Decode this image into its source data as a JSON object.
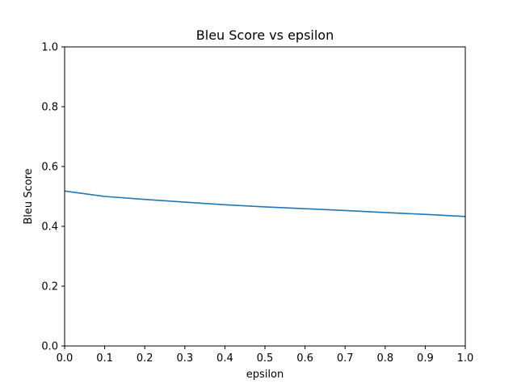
{
  "chart_data": {
    "type": "line",
    "title": "Bleu Score vs epsilon",
    "xlabel": "epsilon",
    "ylabel": "Bleu Score",
    "xlim": [
      0.0,
      1.0
    ],
    "ylim": [
      0.0,
      1.0
    ],
    "xticks": [
      "0.0",
      "0.1",
      "0.2",
      "0.3",
      "0.4",
      "0.5",
      "0.6",
      "0.7",
      "0.8",
      "0.9",
      "1.0"
    ],
    "yticks": [
      "0.0",
      "0.2",
      "0.4",
      "0.6",
      "0.8",
      "1.0"
    ],
    "grid": false,
    "legend": "none",
    "series": [
      {
        "color": "#1f77b4",
        "x": [
          0.0,
          0.1,
          0.2,
          0.3,
          0.4,
          0.5,
          0.6,
          0.7,
          0.8,
          0.9,
          1.0
        ],
        "y": [
          0.518,
          0.5,
          0.49,
          0.481,
          0.472,
          0.465,
          0.459,
          0.453,
          0.446,
          0.44,
          0.433
        ]
      }
    ]
  }
}
